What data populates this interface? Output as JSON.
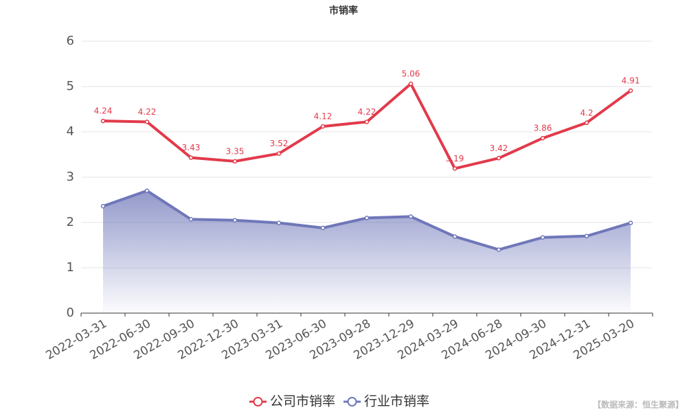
{
  "chart_data": {
    "type": "line",
    "title": "市销率",
    "categories": [
      "2022-03-31",
      "2022-06-30",
      "2022-09-30",
      "2022-12-30",
      "2023-03-31",
      "2023-06-30",
      "2023-09-28",
      "2023-12-29",
      "2024-03-29",
      "2024-06-28",
      "2024-09-30",
      "2024-12-31",
      "2025-03-20"
    ],
    "series": [
      {
        "name": "公司市销率",
        "color": "#e23a4b",
        "values": [
          4.24,
          4.22,
          3.43,
          3.35,
          3.52,
          4.12,
          4.22,
          5.06,
          3.19,
          3.42,
          3.86,
          4.2,
          4.91
        ],
        "data_labels": true
      },
      {
        "name": "行业市销率",
        "color": "#6f77b9",
        "values": [
          2.36,
          2.7,
          2.07,
          2.05,
          1.99,
          1.88,
          2.1,
          2.13,
          1.69,
          1.4,
          1.67,
          1.7,
          1.99
        ],
        "area": true
      }
    ],
    "ylim": [
      0,
      6
    ],
    "yticks": [
      0,
      1,
      2,
      3,
      4,
      5,
      6
    ],
    "grid": true,
    "legend": "bottom",
    "source": "【数据来源：恒生聚源】"
  }
}
